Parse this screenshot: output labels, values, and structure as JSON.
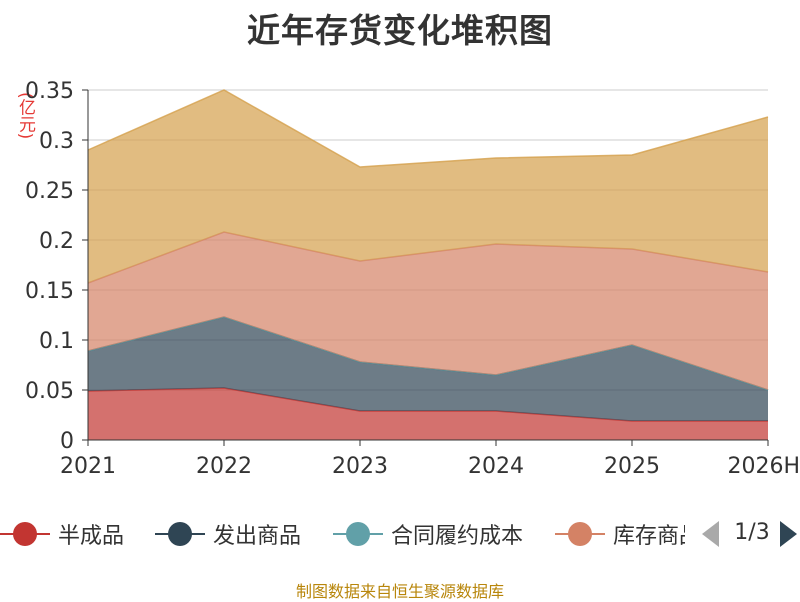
{
  "title": "近年存货变化堆积图",
  "unit_label": "(亿元)",
  "source_note": "制图数据来自恒生聚源数据库",
  "legend": {
    "pager_text": "1/3",
    "visible_items": [
      {
        "name": "半成品",
        "color": "#c23531"
      },
      {
        "name": "发出商品",
        "color": "#2f4554"
      },
      {
        "name": "合同履约成本",
        "color": "#61a0a8"
      },
      {
        "name": "库存商品",
        "color": "#d48265"
      }
    ]
  },
  "chart_data": {
    "type": "area",
    "stacked": true,
    "categories": [
      "2021",
      "2022",
      "2023",
      "2024",
      "2025",
      "2026H"
    ],
    "ylim": [
      0,
      0.35
    ],
    "yticks": [
      "0",
      "0.05",
      "0.1",
      "0.15",
      "0.2",
      "0.25",
      "0.3",
      "0.35"
    ],
    "grid": true,
    "legend_position": "bottom",
    "series": [
      {
        "name": "半成品",
        "color": "#c23531",
        "values": [
          0.049,
          0.052,
          0.029,
          0.029,
          0.019,
          0.019
        ]
      },
      {
        "name": "发出商品",
        "color": "#2f4554",
        "values": [
          0.04,
          0.071,
          0.049,
          0.036,
          0.076,
          0.031
        ]
      },
      {
        "name": "合同履约成本",
        "color": "#61a0a8",
        "values": [
          0,
          0,
          0,
          0,
          0,
          0
        ]
      },
      {
        "name": "库存商品",
        "color": "#d48265",
        "values": [
          0.068,
          0.085,
          0.101,
          0.131,
          0.096,
          0.118
        ]
      },
      {
        "name": "",
        "color": "#d4a04c",
        "values": [
          0.133,
          0.142,
          0.094,
          0.086,
          0.094,
          0.155
        ]
      }
    ]
  }
}
